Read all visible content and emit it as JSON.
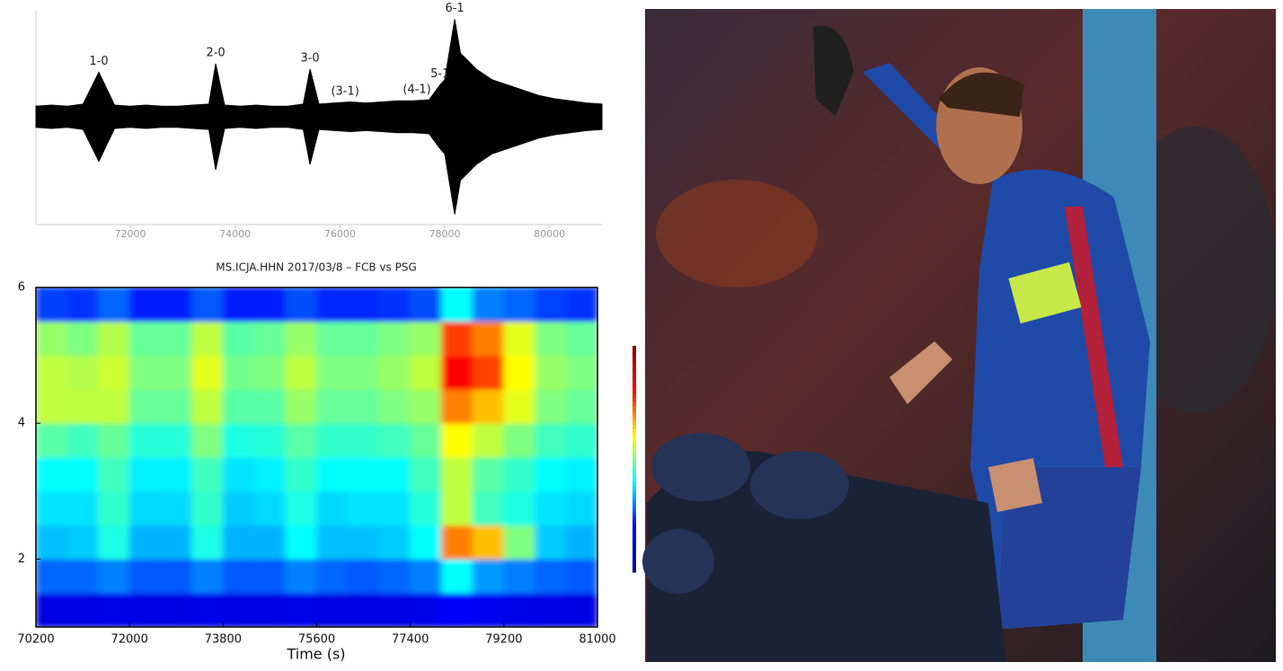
{
  "chart_data": [
    {
      "type": "trace",
      "color": "#000000",
      "xlim": [
        70200,
        81000
      ],
      "xticks": [
        72000,
        74000,
        76000,
        78000,
        80000
      ],
      "ylim": [
        -1,
        1
      ],
      "x": [
        70200,
        70500,
        70800,
        71100,
        71400,
        71700,
        72000,
        72300,
        72600,
        72900,
        73200,
        73500,
        73630,
        73800,
        74100,
        74400,
        74700,
        75000,
        75300,
        75430,
        75600,
        75900,
        76200,
        76500,
        76800,
        77100,
        77400,
        77700,
        77910,
        78000,
        78190,
        78300,
        78600,
        78900,
        79200,
        79500,
        79800,
        80100,
        80400,
        80700,
        81000
      ],
      "values": [
        0.1,
        0.11,
        0.1,
        0.12,
        0.42,
        0.11,
        0.1,
        0.11,
        0.1,
        0.1,
        0.11,
        0.12,
        0.5,
        0.11,
        0.1,
        0.11,
        0.1,
        0.1,
        0.12,
        0.45,
        0.12,
        0.13,
        0.14,
        0.13,
        0.14,
        0.15,
        0.15,
        0.16,
        0.3,
        0.35,
        0.92,
        0.6,
        0.45,
        0.35,
        0.3,
        0.25,
        0.2,
        0.17,
        0.15,
        0.13,
        0.12
      ],
      "annotations": [
        {
          "text": "1-0",
          "x": 71400
        },
        {
          "text": "2-0",
          "x": 73630
        },
        {
          "text": "3-0",
          "x": 75430
        },
        {
          "text": "(3-1)",
          "x": 76100
        },
        {
          "text": "(4-1)",
          "x": 77470
        },
        {
          "text": "5-1",
          "x": 77910
        },
        {
          "text": "6-1",
          "x": 78190
        }
      ]
    },
    {
      "type": "spectrogram",
      "title": "MS.ICJA.HHN 2017/03/8 – FCB vs PSG",
      "x_label": "Time (s)",
      "xlim": [
        70200,
        81000
      ],
      "xticks": [
        70200,
        72000,
        73800,
        75600,
        77400,
        79200,
        81000
      ],
      "ylim": [
        1,
        6
      ],
      "yticks": [
        2,
        4,
        6
      ],
      "xbins": [
        70200,
        70800,
        71400,
        72000,
        72600,
        73200,
        73800,
        74400,
        75000,
        75600,
        76200,
        76800,
        77400,
        78000,
        78600,
        79200,
        79800,
        80400,
        81000
      ],
      "ybins": [
        1,
        1.5,
        2,
        2.5,
        3,
        3.5,
        4,
        4.5,
        5,
        5.5,
        6
      ],
      "zlim": [
        0,
        1
      ],
      "colormap": [
        "#00008f",
        "#0000ff",
        "#00ffff",
        "#ffff00",
        "#ff0000",
        "#800000"
      ],
      "z": [
        [
          0.15,
          0.15,
          0.16,
          0.15,
          0.15,
          0.16,
          0.15,
          0.15,
          0.16,
          0.15,
          0.15,
          0.15,
          0.16,
          0.2,
          0.17,
          0.16,
          0.15,
          0.15
        ],
        [
          0.28,
          0.28,
          0.3,
          0.27,
          0.27,
          0.3,
          0.27,
          0.27,
          0.3,
          0.28,
          0.27,
          0.28,
          0.3,
          0.4,
          0.32,
          0.3,
          0.28,
          0.27
        ],
        [
          0.35,
          0.36,
          0.42,
          0.34,
          0.34,
          0.42,
          0.34,
          0.34,
          0.4,
          0.35,
          0.35,
          0.36,
          0.4,
          0.7,
          0.65,
          0.5,
          0.36,
          0.34
        ],
        [
          0.38,
          0.38,
          0.44,
          0.37,
          0.37,
          0.44,
          0.36,
          0.37,
          0.42,
          0.37,
          0.38,
          0.38,
          0.43,
          0.55,
          0.45,
          0.42,
          0.38,
          0.37
        ],
        [
          0.4,
          0.4,
          0.45,
          0.39,
          0.39,
          0.45,
          0.38,
          0.39,
          0.44,
          0.4,
          0.4,
          0.4,
          0.45,
          0.55,
          0.47,
          0.44,
          0.4,
          0.39
        ],
        [
          0.47,
          0.45,
          0.48,
          0.43,
          0.43,
          0.5,
          0.42,
          0.43,
          0.47,
          0.44,
          0.44,
          0.45,
          0.48,
          0.6,
          0.55,
          0.5,
          0.45,
          0.44
        ],
        [
          0.55,
          0.55,
          0.55,
          0.48,
          0.48,
          0.55,
          0.47,
          0.47,
          0.52,
          0.48,
          0.48,
          0.5,
          0.52,
          0.7,
          0.65,
          0.58,
          0.5,
          0.48
        ],
        [
          0.55,
          0.54,
          0.56,
          0.5,
          0.5,
          0.58,
          0.49,
          0.5,
          0.55,
          0.5,
          0.5,
          0.52,
          0.55,
          0.8,
          0.75,
          0.6,
          0.52,
          0.5
        ],
        [
          0.52,
          0.5,
          0.54,
          0.48,
          0.48,
          0.55,
          0.47,
          0.48,
          0.52,
          0.48,
          0.48,
          0.5,
          0.52,
          0.75,
          0.7,
          0.58,
          0.5,
          0.48
        ],
        [
          0.25,
          0.24,
          0.28,
          0.22,
          0.22,
          0.27,
          0.22,
          0.22,
          0.26,
          0.23,
          0.23,
          0.24,
          0.26,
          0.4,
          0.3,
          0.28,
          0.25,
          0.24
        ]
      ]
    }
  ]
}
